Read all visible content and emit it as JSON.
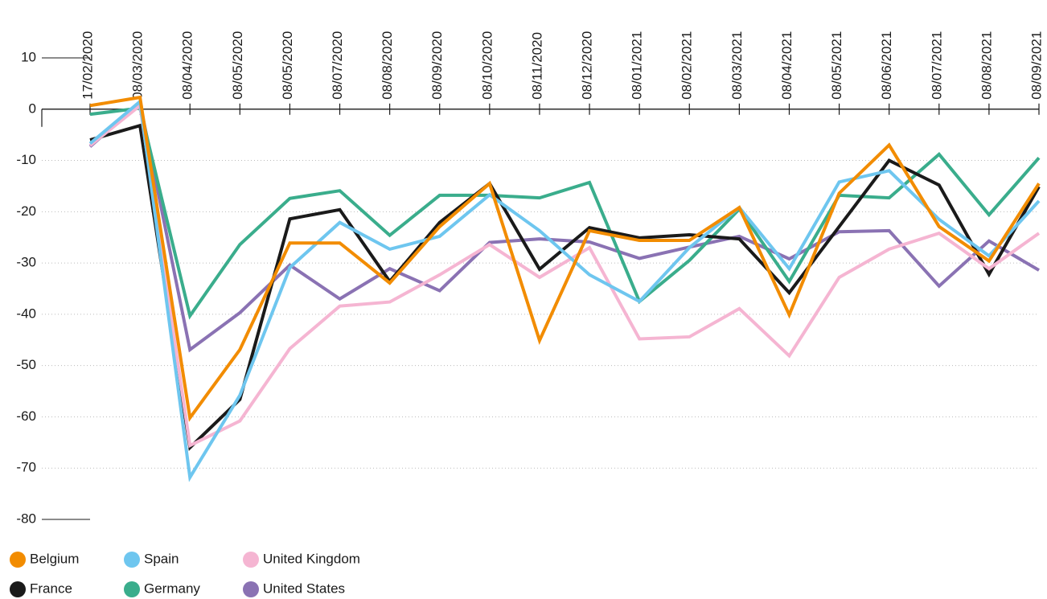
{
  "chart_data": {
    "type": "line",
    "categories": [
      "17/02/2020",
      "08/03/2020",
      "08/04/2020",
      "08/05/2020",
      "08/05/2020",
      "08/07/2020",
      "08/08/2020",
      "08/09/2020",
      "08/10/2020",
      "08/11/2020",
      "08/12/2020",
      "08/01/2021",
      "08/02/2021",
      "08/03/2021",
      "08/04/2021",
      "08/05/2021",
      "08/06/2021",
      "08/07/2021",
      "08/08/2021",
      "08/09/2021"
    ],
    "series": [
      {
        "name": "Belgium",
        "color": "#f28c00",
        "values": [
          0.7,
          2.3,
          -60.2,
          -46.9,
          -26.1,
          -26.1,
          -33.9,
          -22.9,
          -14.5,
          -45.1,
          -23.7,
          -25.6,
          -25.6,
          -19.2,
          -40.1,
          -16.4,
          -7,
          -22.9,
          -29.6,
          -14.5
        ]
      },
      {
        "name": "Spain",
        "color": "#6ec6ef",
        "values": [
          -6.7,
          1.5,
          -71.8,
          -55.8,
          -30.9,
          -22.1,
          -27.3,
          -24.8,
          -16.7,
          -23.7,
          -32.3,
          -37.5,
          -27,
          -19.2,
          -31.1,
          -14.2,
          -12,
          -21.5,
          -28.6,
          -17.9
        ]
      },
      {
        "name": "United Kingdom",
        "color": "#f5b5d2",
        "values": [
          -7.1,
          0.7,
          -65.6,
          -60.8,
          -46.7,
          -38.4,
          -37.6,
          -32.3,
          -26.4,
          -32.8,
          -27,
          -44.8,
          -44.4,
          -38.9,
          -48.1,
          -32.8,
          -27.3,
          -24.2,
          -31.1,
          -24.2
        ]
      },
      {
        "name": "France",
        "color": "#1a1a1a",
        "values": [
          -6,
          -3.2,
          -66,
          -56.6,
          -21.4,
          -19.6,
          -33.6,
          -22.1,
          -14.5,
          -31.2,
          -23.1,
          -25.1,
          -24.5,
          -25.3,
          -35.8,
          -22.9,
          -10,
          -14.8,
          -32.2,
          -15.1
        ]
      },
      {
        "name": "Germany",
        "color": "#3aad8c",
        "values": [
          -1,
          0.2,
          -40.3,
          -26.4,
          -17.4,
          -15.9,
          -24.6,
          -16.8,
          -16.8,
          -17.3,
          -14.3,
          -37.5,
          -29.5,
          -19.5,
          -33.6,
          -16.8,
          -17.3,
          -8.8,
          -20.6,
          -9.5
        ]
      },
      {
        "name": "United States",
        "color": "#8a72b3",
        "values": [
          -7.3,
          1.2,
          -46.9,
          -39.7,
          -30.4,
          -37,
          -31.1,
          -35.4,
          -26,
          -25.3,
          -25.9,
          -29.1,
          -26.9,
          -24.8,
          -29.2,
          -23.9,
          -23.7,
          -34.5,
          -25.7,
          -31.4
        ]
      }
    ],
    "ylim": [
      -80,
      10
    ],
    "yticks": [
      -80,
      -70,
      -60,
      -50,
      -40,
      -30,
      -20,
      -10,
      0,
      10
    ],
    "grid": true
  }
}
